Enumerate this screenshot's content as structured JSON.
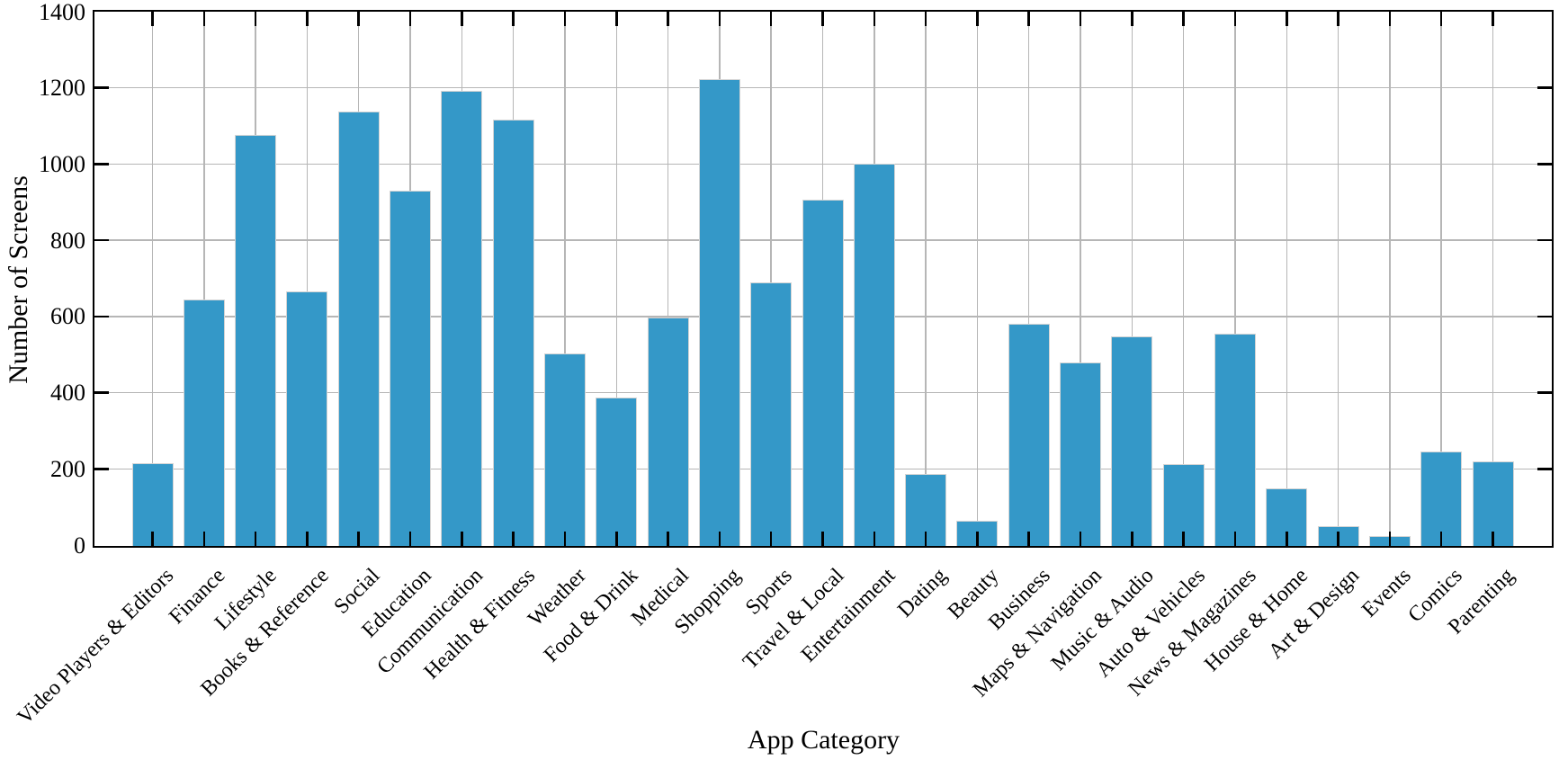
{
  "chart_data": {
    "type": "bar",
    "title": "",
    "xlabel": "App Category",
    "ylabel": "Number of Screens",
    "ylim": [
      0,
      1400
    ],
    "ytick_step": 200,
    "yticks": [
      0,
      200,
      400,
      600,
      800,
      1000,
      1200,
      1400
    ],
    "grid": true,
    "legend": "none",
    "categories": [
      "Video Players & Editors",
      "Finance",
      "Lifestyle",
      "Books & Reference",
      "Social",
      "Education",
      "Communication",
      "Health & Fitness",
      "Weather",
      "Food & Drink",
      "Medical",
      "Shopping",
      "Sports",
      "Travel & Local",
      "Entertainment",
      "Dating",
      "Beauty",
      "Business",
      "Maps & Navigation",
      "Music & Audio",
      "Auto & Vehicles",
      "News & Magazines",
      "House & Home",
      "Art & Design",
      "Events",
      "Comics",
      "Parenting"
    ],
    "values": [
      217,
      646,
      1079,
      668,
      1141,
      933,
      1194,
      1120,
      506,
      389,
      600,
      1226,
      692,
      908,
      1004,
      188,
      65,
      583,
      482,
      549,
      216,
      558,
      152,
      52,
      26,
      247,
      222
    ],
    "colors": {
      "bar_fill": "#3498c8",
      "bar_edge": "#d4d4d4",
      "grid": "#b6b6b6",
      "axis": "#000000",
      "background": "#ffffff"
    }
  }
}
